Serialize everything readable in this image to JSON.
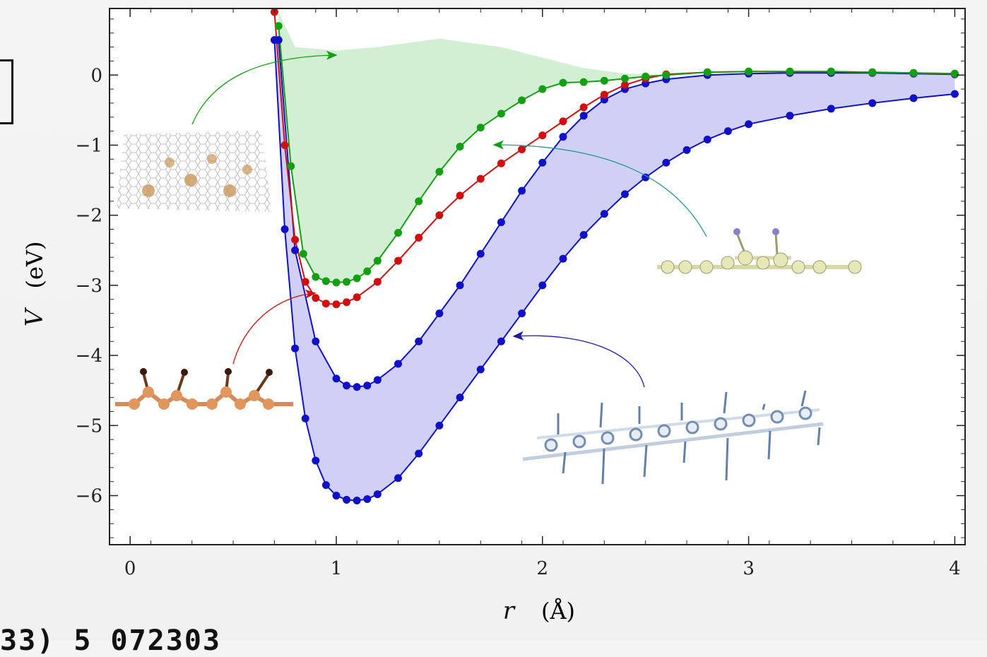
{
  "chart_data": {
    "type": "line",
    "xlabel_var": "r",
    "xlabel_unit": "(Å)",
    "ylabel_var": "V",
    "ylabel_unit": "(eV)",
    "xlim": [
      -0.1,
      4.05
    ],
    "ylim": [
      -6.7,
      0.95
    ],
    "xticks": [
      0,
      1,
      2,
      3,
      4
    ],
    "xtick_labels": [
      "0",
      "1",
      "2",
      "3",
      "4"
    ],
    "yticks": [
      0,
      -1,
      -2,
      -3,
      -4,
      -5,
      -6
    ],
    "ytick_labels": [
      "0",
      "−1",
      "−2",
      "−3",
      "−4",
      "−5",
      "−6"
    ],
    "grid": false,
    "series": [
      {
        "color": "#1010c8",
        "x": [
          0.7,
          0.75,
          0.8,
          0.85,
          0.9,
          0.95,
          1.0,
          1.05,
          1.1,
          1.15,
          1.2,
          1.3,
          1.4,
          1.5,
          1.6,
          1.7,
          1.8,
          1.9,
          2.0,
          2.1,
          2.2,
          2.3,
          2.4,
          2.5,
          2.6,
          2.7,
          2.8,
          2.9,
          3.0,
          3.2,
          3.4,
          3.6,
          3.8,
          4.0
        ],
        "y": [
          0.5,
          -2.2,
          -3.9,
          -4.9,
          -5.5,
          -5.85,
          -6.0,
          -6.06,
          -6.07,
          -6.05,
          -5.98,
          -5.75,
          -5.4,
          -5.0,
          -4.6,
          -4.2,
          -3.8,
          -3.4,
          -3.0,
          -2.62,
          -2.28,
          -1.98,
          -1.7,
          -1.46,
          -1.25,
          -1.07,
          -0.92,
          -0.8,
          -0.7,
          -0.58,
          -0.48,
          -0.4,
          -0.33,
          -0.27
        ]
      },
      {
        "color": "#1010c8",
        "x": [
          0.72,
          0.8,
          0.9,
          1.0,
          1.05,
          1.1,
          1.15,
          1.2,
          1.3,
          1.4,
          1.5,
          1.6,
          1.7,
          1.8,
          1.9,
          2.0,
          2.1,
          2.2,
          2.3,
          2.4,
          2.5,
          2.6,
          2.8,
          3.0,
          3.2,
          3.4,
          3.6,
          3.8,
          4.0
        ],
        "y": [
          0.5,
          -2.5,
          -3.8,
          -4.33,
          -4.43,
          -4.45,
          -4.43,
          -4.35,
          -4.12,
          -3.8,
          -3.4,
          -3.0,
          -2.55,
          -2.1,
          -1.65,
          -1.25,
          -0.88,
          -0.58,
          -0.35,
          -0.2,
          -0.12,
          -0.06,
          0.0,
          0.02,
          0.03,
          0.03,
          0.03,
          0.02,
          0.01
        ]
      },
      {
        "color": "#d01010",
        "x": [
          0.7,
          0.75,
          0.8,
          0.85,
          0.9,
          0.95,
          1.0,
          1.05,
          1.1,
          1.2,
          1.3,
          1.4,
          1.5,
          1.6,
          1.7,
          1.8,
          1.9,
          2.0,
          2.1,
          2.2,
          2.3,
          2.4,
          2.5,
          2.6,
          2.8,
          3.0,
          3.2,
          3.4,
          3.6,
          3.8,
          4.0
        ],
        "y": [
          0.9,
          -1.0,
          -2.35,
          -2.95,
          -3.18,
          -3.26,
          -3.27,
          -3.24,
          -3.17,
          -2.95,
          -2.65,
          -2.32,
          -2.0,
          -1.72,
          -1.48,
          -1.26,
          -1.06,
          -0.86,
          -0.66,
          -0.46,
          -0.28,
          -0.14,
          -0.05,
          0.01,
          0.04,
          0.05,
          0.05,
          0.05,
          0.04,
          0.03,
          0.02
        ]
      },
      {
        "color": "#12a012",
        "x": [
          0.72,
          0.78,
          0.84,
          0.9,
          0.95,
          1.0,
          1.05,
          1.1,
          1.15,
          1.2,
          1.3,
          1.4,
          1.5,
          1.6,
          1.7,
          1.8,
          1.9,
          2.0,
          2.1,
          2.2,
          2.3,
          2.4,
          2.5,
          2.6,
          2.8,
          3.0,
          3.2,
          3.4,
          3.6,
          3.8,
          4.0
        ],
        "y": [
          0.7,
          -1.3,
          -2.55,
          -2.88,
          -2.94,
          -2.96,
          -2.95,
          -2.9,
          -2.8,
          -2.65,
          -2.25,
          -1.8,
          -1.38,
          -1.02,
          -0.75,
          -0.55,
          -0.36,
          -0.2,
          -0.11,
          -0.1,
          -0.08,
          -0.05,
          -0.02,
          0.0,
          0.04,
          0.05,
          0.05,
          0.05,
          0.04,
          0.03,
          0.02
        ]
      }
    ],
    "bands": [
      {
        "fill": "#c8c8f5",
        "between": [
          0,
          1
        ]
      },
      {
        "fill": "#cbeccb",
        "upper_x": [
          0.72,
          0.8,
          1.0,
          1.2,
          1.5,
          1.8,
          2.0,
          2.2,
          2.4,
          2.6
        ],
        "upper_y": [
          0.9,
          0.4,
          0.35,
          0.4,
          0.52,
          0.4,
          0.25,
          0.1,
          0.02,
          0.0
        ],
        "lower_series": 3
      }
    ]
  },
  "footer": {
    "partial_text": "33) 5 072303"
  },
  "colors": {
    "blue": "#1010c8",
    "red": "#d01010",
    "green": "#12a012"
  }
}
